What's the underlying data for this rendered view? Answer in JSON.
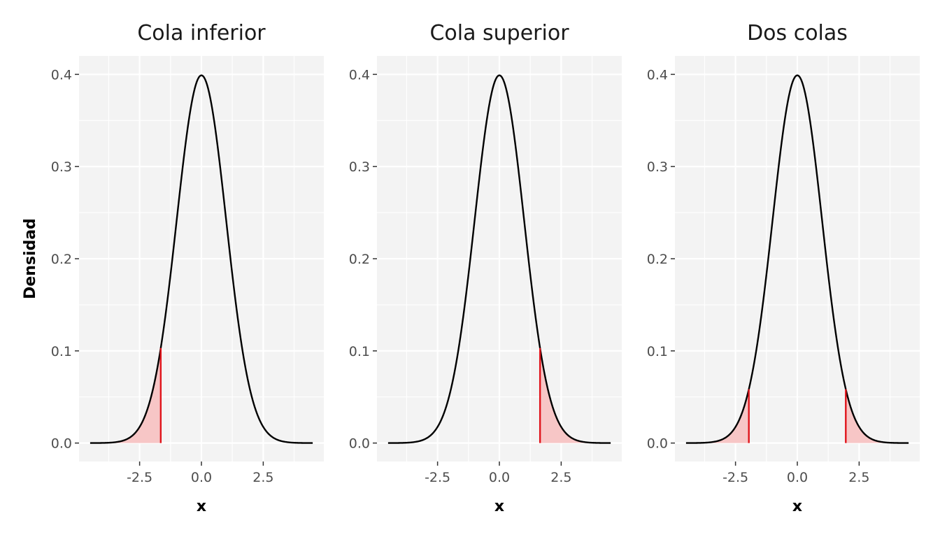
{
  "chart_data": [
    {
      "type": "area",
      "title": "Cola inferior",
      "xlabel": "x",
      "ylabel": "Densidad",
      "xlim": [
        -4.5,
        4.5
      ],
      "ylim": [
        0,
        0.4
      ],
      "x_ticks": [
        -2.5,
        0.0,
        2.5
      ],
      "x_tick_labels": [
        "-2.5",
        "0.0",
        "2.5"
      ],
      "y_ticks": [
        0.0,
        0.1,
        0.2,
        0.3,
        0.4
      ],
      "y_tick_labels": [
        "0.0",
        "0.1",
        "0.2",
        "0.3",
        "0.4"
      ],
      "curve": {
        "distribution": "normal",
        "mean": 0,
        "sd": 1,
        "x_range": [
          -4.5,
          4.5
        ]
      },
      "shaded_regions": [
        {
          "from": -4.5,
          "to": -1.645
        }
      ],
      "critical_values": [
        -1.645
      ],
      "grid": true,
      "legend": "none"
    },
    {
      "type": "area",
      "title": "Cola superior",
      "xlabel": "x",
      "ylabel": "",
      "xlim": [
        -4.5,
        4.5
      ],
      "ylim": [
        0,
        0.4
      ],
      "x_ticks": [
        -2.5,
        0.0,
        2.5
      ],
      "x_tick_labels": [
        "-2.5",
        "0.0",
        "2.5"
      ],
      "y_ticks": [
        0.0,
        0.1,
        0.2,
        0.3,
        0.4
      ],
      "y_tick_labels": [
        "0.0",
        "0.1",
        "0.2",
        "0.3",
        "0.4"
      ],
      "curve": {
        "distribution": "normal",
        "mean": 0,
        "sd": 1,
        "x_range": [
          -4.5,
          4.5
        ]
      },
      "shaded_regions": [
        {
          "from": 1.645,
          "to": 4.5
        }
      ],
      "critical_values": [
        1.645
      ],
      "grid": true,
      "legend": "none"
    },
    {
      "type": "area",
      "title": "Dos colas",
      "xlabel": "x",
      "ylabel": "",
      "xlim": [
        -4.5,
        4.5
      ],
      "ylim": [
        0,
        0.4
      ],
      "x_ticks": [
        -2.5,
        0.0,
        2.5
      ],
      "x_tick_labels": [
        "-2.5",
        "0.0",
        "2.5"
      ],
      "y_ticks": [
        0.0,
        0.1,
        0.2,
        0.3,
        0.4
      ],
      "y_tick_labels": [
        "0.0",
        "0.1",
        "0.2",
        "0.3",
        "0.4"
      ],
      "curve": {
        "distribution": "normal",
        "mean": 0,
        "sd": 1,
        "x_range": [
          -4.5,
          4.5
        ]
      },
      "shaded_regions": [
        {
          "from": -4.5,
          "to": -1.96
        },
        {
          "from": 1.96,
          "to": 4.5
        }
      ],
      "critical_values": [
        -1.96,
        1.96
      ],
      "grid": true,
      "legend": "none"
    }
  ],
  "colors": {
    "panel_background": "#f3f3f3",
    "grid": "#ffffff",
    "curve": "#000000",
    "tail_fill": "#f7c6c6",
    "critical_line": "#e0141b"
  }
}
